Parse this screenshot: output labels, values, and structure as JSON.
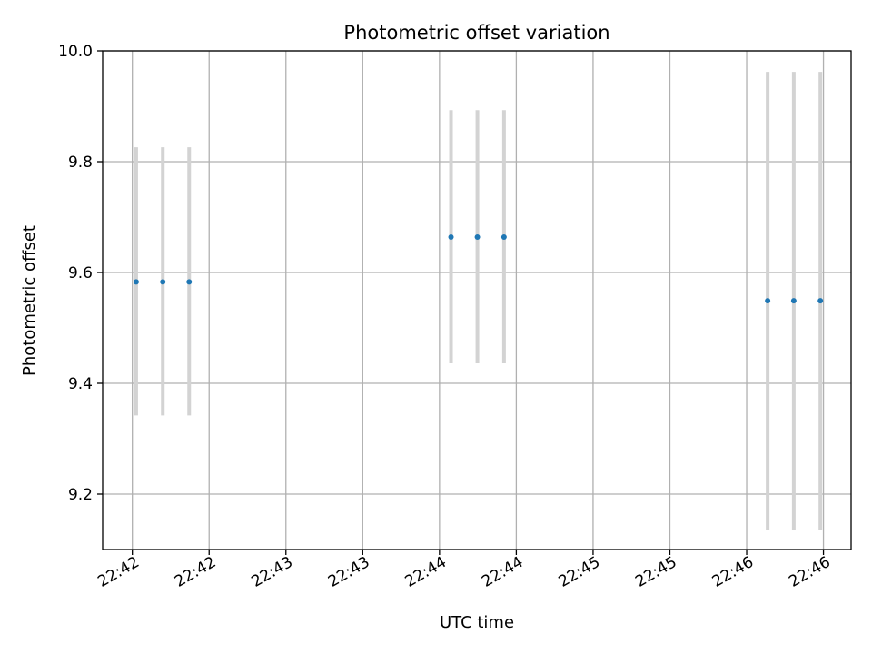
{
  "chart_data": {
    "type": "scatter",
    "title": "Photometric offset variation",
    "xlabel": "UTC time",
    "ylabel": "Photometric offset",
    "x_tick_labels": [
      "22:42",
      "22:42",
      "22:43",
      "22:43",
      "22:44",
      "22:44",
      "22:45",
      "22:45",
      "22:46",
      "22:46"
    ],
    "x_tick_values": [
      0,
      30,
      60,
      90,
      120,
      150,
      180,
      210,
      240,
      270
    ],
    "xlim": [
      -11.6,
      280.8
    ],
    "y_ticks": [
      9.2,
      9.4,
      9.6,
      9.8,
      10.0
    ],
    "y_tick_labels": [
      "9.2",
      "9.4",
      "9.6",
      "9.8",
      "10.0"
    ],
    "ylim": [
      9.1,
      10.0
    ],
    "grid": true,
    "series": [
      {
        "marker_color": "#1f77b4",
        "errorbar_color": "#d3d3d3",
        "points": [
          {
            "x": 1.5,
            "y": 9.583,
            "ymin": 9.342,
            "ymax": 9.826
          },
          {
            "x": 11.9,
            "y": 9.583,
            "ymin": 9.342,
            "ymax": 9.826
          },
          {
            "x": 22.2,
            "y": 9.583,
            "ymin": 9.342,
            "ymax": 9.826
          },
          {
            "x": 124.5,
            "y": 9.664,
            "ymin": 9.436,
            "ymax": 9.893
          },
          {
            "x": 134.8,
            "y": 9.664,
            "ymin": 9.436,
            "ymax": 9.893
          },
          {
            "x": 145.2,
            "y": 9.664,
            "ymin": 9.436,
            "ymax": 9.893
          },
          {
            "x": 248.2,
            "y": 9.549,
            "ymin": 9.136,
            "ymax": 9.962
          },
          {
            "x": 258.4,
            "y": 9.549,
            "ymin": 9.136,
            "ymax": 9.962
          },
          {
            "x": 268.8,
            "y": 9.549,
            "ymin": 9.136,
            "ymax": 9.962
          }
        ]
      }
    ]
  }
}
